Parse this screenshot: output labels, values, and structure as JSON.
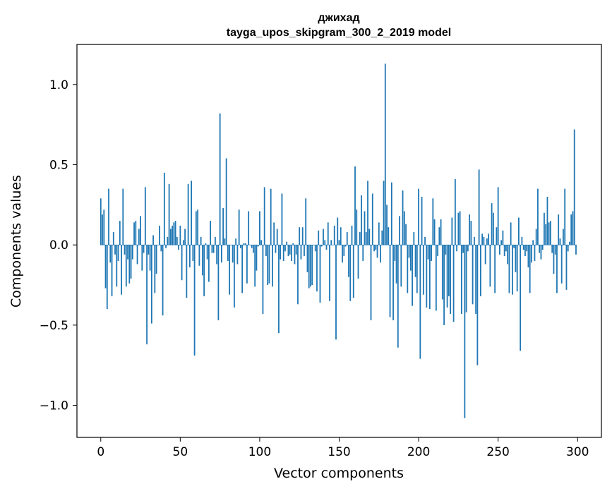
{
  "chart_data": {
    "type": "bar",
    "title": "джихад",
    "subtitle": "tayga_upos_skipgram_300_2_2019 model",
    "xlabel": "Vector components",
    "ylabel": "Components values",
    "xlim": [
      -15,
      315
    ],
    "ylim": [
      -1.2,
      1.25
    ],
    "xticks": [
      0,
      50,
      100,
      150,
      200,
      250,
      300
    ],
    "xtick_labels": [
      "0",
      "50",
      "100",
      "150",
      "200",
      "250",
      "300"
    ],
    "yticks": [
      1.0,
      0.5,
      0.0,
      -0.5,
      -1.0
    ],
    "ytick_labels": [
      "1.0",
      "0.5",
      "0.0",
      "−0.5",
      "−1.0"
    ],
    "bar_color": "#1f77b4",
    "grid": false,
    "legend": "none",
    "x": "0..299",
    "values": [
      0.29,
      0.19,
      0.22,
      -0.27,
      -0.4,
      0.35,
      -0.11,
      -0.32,
      0.08,
      -0.06,
      -0.26,
      -0.1,
      0.15,
      -0.31,
      0.35,
      -0.06,
      -0.26,
      -0.09,
      -0.24,
      -0.21,
      -0.09,
      0.14,
      0.15,
      -0.12,
      0.1,
      0.18,
      -0.16,
      -0.05,
      0.36,
      -0.62,
      -0.06,
      -0.16,
      -0.49,
      0.06,
      -0.3,
      -0.18,
      0.0,
      0.12,
      -0.04,
      -0.44,
      0.45,
      -0.02,
      0.05,
      0.38,
      0.1,
      0.12,
      0.14,
      0.15,
      0.05,
      -0.03,
      0.12,
      -0.22,
      0.03,
      0.1,
      -0.33,
      0.38,
      -0.14,
      0.4,
      -0.1,
      -0.69,
      0.21,
      0.22,
      -0.13,
      0.05,
      -0.19,
      -0.32,
      0.01,
      -0.09,
      -0.23,
      0.15,
      -0.05,
      -0.05,
      0.05,
      -0.12,
      -0.47,
      0.82,
      -0.11,
      0.23,
      0.04,
      0.54,
      -0.1,
      -0.31,
      0.0,
      -0.11,
      -0.39,
      0.04,
      -0.12,
      0.22,
      -0.02,
      -0.3,
      0.01,
      0.01,
      -0.24,
      0.21,
      0.0,
      -0.02,
      -0.05,
      -0.26,
      -0.16,
      -0.01,
      0.21,
      0.03,
      -0.43,
      0.36,
      -0.07,
      -0.25,
      -0.24,
      0.35,
      -0.26,
      0.14,
      -0.05,
      0.1,
      -0.55,
      -0.09,
      0.32,
      -0.1,
      -0.04,
      0.02,
      -0.07,
      -0.06,
      -0.1,
      0.01,
      -0.12,
      -0.06,
      -0.37,
      0.11,
      -0.09,
      0.11,
      -0.07,
      0.29,
      -0.17,
      -0.27,
      -0.26,
      -0.25,
      0.0,
      -0.04,
      -0.29,
      0.09,
      -0.36,
      -0.01,
      0.1,
      0.03,
      -0.03,
      0.14,
      -0.35,
      0.03,
      0.0,
      0.12,
      -0.59,
      0.17,
      0.03,
      0.11,
      -0.11,
      -0.07,
      -0.01,
      0.08,
      -0.2,
      -0.35,
      0.12,
      -0.33,
      0.49,
      0.22,
      -0.21,
      0.08,
      0.31,
      -0.1,
      0.21,
      0.08,
      0.4,
      0.1,
      -0.47,
      0.32,
      -0.04,
      -0.03,
      -0.08,
      0.14,
      -0.11,
      0.09,
      0.4,
      1.13,
      0.25,
      0.11,
      -0.45,
      0.39,
      -0.47,
      -0.1,
      -0.24,
      -0.64,
      0.18,
      -0.26,
      0.34,
      0.21,
      0.13,
      -0.3,
      -0.08,
      -0.16,
      -0.38,
      0.08,
      -0.2,
      -0.3,
      0.35,
      -0.71,
      0.3,
      -0.31,
      0.05,
      -0.39,
      -0.09,
      -0.4,
      -0.1,
      0.29,
      0.16,
      -0.41,
      -0.07,
      0.11,
      0.16,
      -0.34,
      -0.5,
      -0.06,
      -0.39,
      -0.32,
      -0.43,
      0.17,
      -0.48,
      0.41,
      -0.04,
      0.2,
      0.21,
      -0.43,
      -0.05,
      -1.08,
      -0.42,
      -0.04,
      0.19,
      0.15,
      -0.37,
      0.05,
      -0.43,
      -0.75,
      0.47,
      -0.32,
      0.07,
      0.05,
      -0.12,
      0.04,
      0.07,
      -0.26,
      0.26,
      0.2,
      -0.3,
      0.11,
      0.36,
      -0.06,
      0.03,
      0.09,
      -0.07,
      -0.04,
      -0.12,
      -0.3,
      0.14,
      -0.31,
      -0.02,
      -0.17,
      -0.29,
      0.17,
      -0.66,
      0.05,
      -0.03,
      -0.07,
      -0.04,
      -0.14,
      -0.3,
      -0.11,
      0.03,
      -0.1,
      0.1,
      0.35,
      -0.05,
      -0.09,
      -0.03,
      0.2,
      0.13,
      0.3,
      0.14,
      0.15,
      -0.05,
      -0.18,
      -0.06,
      -0.3,
      0.19,
      0.04,
      -0.24,
      0.1,
      0.35,
      -0.28,
      -0.04,
      0.02,
      0.19,
      0.21,
      0.72,
      -0.06
    ]
  }
}
